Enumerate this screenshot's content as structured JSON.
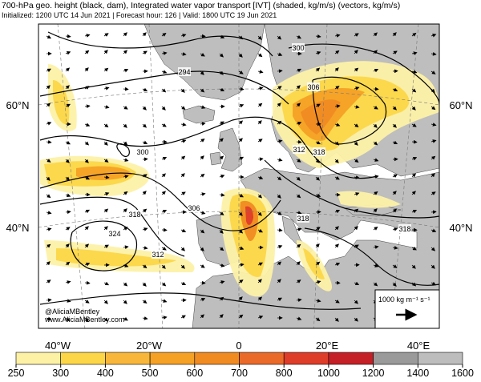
{
  "map": {
    "title": "700-hPa geo. height (black, dam), Integrated water vapor transport [IVT] (shaded, kg/m/s) (vectors, kg/m/s)",
    "subtitle": "Initialized: 1200 UTC 14 Jun 2021 | Forecast hour: 126 | Valid: 1800 UTC 19 Jun 2021",
    "lat_labels_left": [
      "60°N",
      "40°N"
    ],
    "lat_labels_right": [
      "60°N",
      "40°N"
    ],
    "lon_labels": [
      "40°W",
      "20°W",
      "0",
      "20°E",
      "40°E"
    ],
    "contour_labels": [
      "294",
      "300",
      "300",
      "306",
      "306",
      "312",
      "312",
      "318",
      "318",
      "318",
      "318",
      "324"
    ],
    "credit": [
      "@AliciaMBentley",
      "www.AliciaMBentley.com"
    ],
    "vector_legend": "1000 kg m⁻¹ s⁻¹",
    "colorbar": {
      "ticks": [
        250,
        300,
        400,
        500,
        600,
        700,
        800,
        1000,
        1200,
        1400,
        1600
      ],
      "colors": [
        "#fdf1a6",
        "#fcd647",
        "#f8b73a",
        "#f4a126",
        "#f08b22",
        "#ea6a2a",
        "#de3d29",
        "#c52027",
        "#9a9a9a",
        "#bdbdbd"
      ]
    }
  }
}
